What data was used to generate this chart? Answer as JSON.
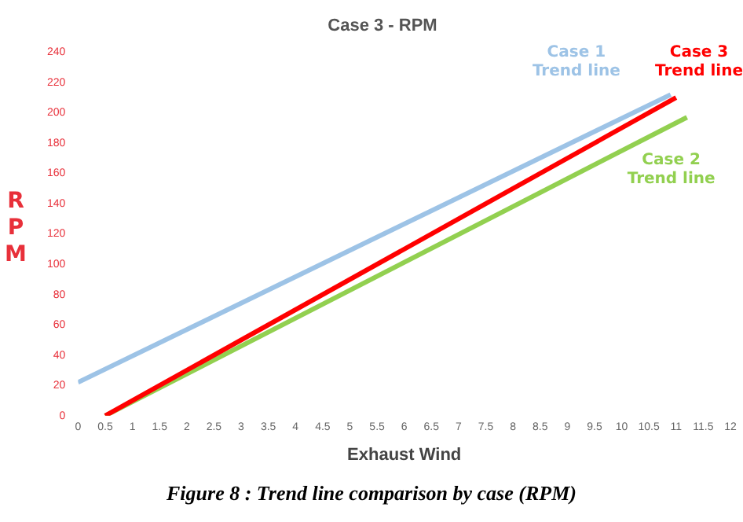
{
  "chart_data": {
    "type": "line",
    "title": "Case 3 - RPM",
    "xlabel": "Exhaust Wind",
    "ylabel": "RPM",
    "series": [
      {
        "name": "Case 1 Trend line",
        "color": "#9dc3e6",
        "x": [
          0,
          10.9
        ],
        "values": [
          22,
          212
        ]
      },
      {
        "name": "Case 3 Trend line",
        "color": "#ff0000",
        "x": [
          0.5,
          11
        ],
        "values": [
          0,
          210
        ]
      },
      {
        "name": "Case 2 Trend line",
        "color": "#92d050",
        "x": [
          0.5,
          11.2
        ],
        "values": [
          0,
          197
        ]
      }
    ],
    "xlim": [
      0,
      12
    ],
    "xticks": [
      0,
      0.5,
      1,
      1.5,
      2,
      2.5,
      3,
      3.5,
      4,
      4.5,
      5,
      5.5,
      6,
      6.5,
      7,
      7.5,
      8,
      8.5,
      9,
      9.5,
      10,
      10.5,
      11,
      11.5,
      12
    ],
    "ylim": [
      0,
      240
    ],
    "yticks": [
      0,
      20,
      40,
      60,
      80,
      100,
      120,
      140,
      160,
      180,
      200,
      220,
      240
    ],
    "grid": false,
    "legend": false,
    "marker": "none",
    "line_style": "solid",
    "annotations": [
      "Figure 8 : Trend line comparison by case (RPM)"
    ]
  }
}
